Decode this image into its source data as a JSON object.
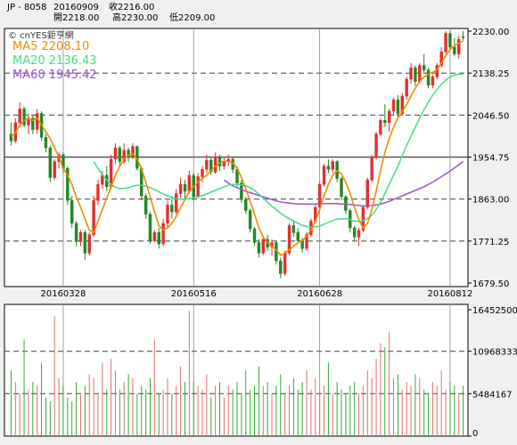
{
  "header": {
    "symbol": "JP - 8058",
    "date": "20160909",
    "close_label": "收2216.00",
    "open_label": "開2218.00",
    "high_label": "高2230.00",
    "low_label": "低2209.00"
  },
  "legend": {
    "source": "© cnYES鉅亨網",
    "ma5": "MA5 2208.10",
    "ma20": "MA20 2136.43",
    "ma60": "MA60 1945.42"
  },
  "colors": {
    "up": "#e03030",
    "down": "#228822",
    "ma5": "#f08c00",
    "ma20": "#44dd88",
    "ma60": "#9955cc",
    "source": "#333333"
  },
  "chart_data": [
    {
      "type": "candlestick",
      "y_ticks": [
        2230.0,
        2138.25,
        2046.5,
        1954.75,
        1863.0,
        1771.25,
        1679.5
      ],
      "y_tick_labels": [
        "2230.00",
        "2138.25",
        "2046.50",
        "1954.75",
        "1863.00",
        "1771.25",
        "1679.50"
      ],
      "ylim": [
        1679.5,
        2230.0
      ],
      "x_tick_labels": [
        "20160328",
        "20160516",
        "20160628",
        "20160812"
      ],
      "x_tick_index": [
        12,
        42,
        71,
        101
      ],
      "reference_line": 1954.75,
      "ohlc": [
        [
          2005,
          2030,
          1980,
          1990
        ],
        [
          1990,
          2040,
          1985,
          2030
        ],
        [
          2030,
          2075,
          2020,
          2060
        ],
        [
          2060,
          2065,
          2020,
          2025
        ],
        [
          2025,
          2050,
          2005,
          2040
        ],
        [
          2040,
          2045,
          2005,
          2015
        ],
        [
          2015,
          2060,
          2005,
          2050
        ],
        [
          2050,
          2055,
          1990,
          1998
        ],
        [
          1998,
          2005,
          1965,
          1975
        ],
        [
          1975,
          1980,
          1900,
          1910
        ],
        [
          1910,
          1950,
          1905,
          1945
        ],
        [
          1945,
          1965,
          1930,
          1960
        ],
        [
          1960,
          1965,
          1920,
          1930
        ],
        [
          1930,
          1935,
          1850,
          1860
        ],
        [
          1860,
          1870,
          1800,
          1810
        ],
        [
          1810,
          1815,
          1760,
          1770
        ],
        [
          1770,
          1795,
          1760,
          1790
        ],
        [
          1790,
          1795,
          1730,
          1745
        ],
        [
          1745,
          1790,
          1740,
          1785
        ],
        [
          1785,
          1870,
          1780,
          1860
        ],
        [
          1860,
          1905,
          1850,
          1895
        ],
        [
          1895,
          1925,
          1885,
          1915
        ],
        [
          1915,
          1935,
          1880,
          1890
        ],
        [
          1890,
          1960,
          1885,
          1950
        ],
        [
          1950,
          1985,
          1940,
          1975
        ],
        [
          1975,
          1980,
          1935,
          1945
        ],
        [
          1945,
          1985,
          1940,
          1970
        ],
        [
          1970,
          1975,
          1945,
          1955
        ],
        [
          1955,
          1985,
          1950,
          1978
        ],
        [
          1978,
          1980,
          1925,
          1930
        ],
        [
          1930,
          1935,
          1860,
          1870
        ],
        [
          1870,
          1875,
          1820,
          1830
        ],
        [
          1830,
          1835,
          1765,
          1772
        ],
        [
          1772,
          1795,
          1768,
          1790
        ],
        [
          1790,
          1800,
          1755,
          1765
        ],
        [
          1765,
          1820,
          1760,
          1810
        ],
        [
          1810,
          1860,
          1800,
          1850
        ],
        [
          1850,
          1870,
          1820,
          1835
        ],
        [
          1835,
          1885,
          1830,
          1875
        ],
        [
          1875,
          1910,
          1865,
          1895
        ],
        [
          1895,
          1905,
          1865,
          1880
        ],
        [
          1880,
          1925,
          1875,
          1915
        ],
        [
          1915,
          1920,
          1860,
          1868
        ],
        [
          1868,
          1920,
          1865,
          1912
        ],
        [
          1912,
          1935,
          1900,
          1928
        ],
        [
          1928,
          1960,
          1920,
          1948
        ],
        [
          1948,
          1955,
          1915,
          1922
        ],
        [
          1922,
          1965,
          1918,
          1955
        ],
        [
          1955,
          1960,
          1925,
          1935
        ],
        [
          1935,
          1955,
          1928,
          1945
        ],
        [
          1945,
          1960,
          1935,
          1950
        ],
        [
          1950,
          1955,
          1920,
          1928
        ],
        [
          1928,
          1935,
          1890,
          1898
        ],
        [
          1898,
          1905,
          1855,
          1862
        ],
        [
          1862,
          1868,
          1830,
          1838
        ],
        [
          1838,
          1842,
          1790,
          1798
        ],
        [
          1798,
          1802,
          1760,
          1768
        ],
        [
          1768,
          1775,
          1735,
          1745
        ],
        [
          1745,
          1780,
          1740,
          1775
        ],
        [
          1775,
          1785,
          1750,
          1758
        ],
        [
          1758,
          1775,
          1740,
          1768
        ],
        [
          1768,
          1770,
          1720,
          1728
        ],
        [
          1728,
          1735,
          1690,
          1700
        ],
        [
          1700,
          1750,
          1695,
          1745
        ],
        [
          1745,
          1810,
          1740,
          1805
        ],
        [
          1805,
          1815,
          1780,
          1790
        ],
        [
          1790,
          1800,
          1765,
          1772
        ],
        [
          1772,
          1778,
          1745,
          1755
        ],
        [
          1755,
          1790,
          1750,
          1785
        ],
        [
          1785,
          1820,
          1780,
          1815
        ],
        [
          1815,
          1850,
          1810,
          1845
        ],
        [
          1845,
          1900,
          1840,
          1895
        ],
        [
          1895,
          1940,
          1890,
          1935
        ],
        [
          1935,
          1950,
          1920,
          1928
        ],
        [
          1928,
          1950,
          1920,
          1945
        ],
        [
          1945,
          1948,
          1900,
          1908
        ],
        [
          1908,
          1912,
          1860,
          1868
        ],
        [
          1868,
          1872,
          1830,
          1838
        ],
        [
          1838,
          1842,
          1790,
          1800
        ],
        [
          1800,
          1805,
          1770,
          1780
        ],
        [
          1780,
          1800,
          1760,
          1795
        ],
        [
          1795,
          1850,
          1790,
          1845
        ],
        [
          1845,
          1910,
          1840,
          1905
        ],
        [
          1905,
          1960,
          1900,
          1955
        ],
        [
          1955,
          2010,
          1950,
          2005
        ],
        [
          2005,
          2040,
          2000,
          2035
        ],
        [
          2035,
          2070,
          2020,
          2030
        ],
        [
          2030,
          2060,
          2010,
          2055
        ],
        [
          2055,
          2085,
          2045,
          2080
        ],
        [
          2080,
          2090,
          2040,
          2050
        ],
        [
          2050,
          2095,
          2045,
          2088
        ],
        [
          2088,
          2130,
          2080,
          2125
        ],
        [
          2125,
          2160,
          2115,
          2150
        ],
        [
          2150,
          2155,
          2110,
          2120
        ],
        [
          2120,
          2160,
          2115,
          2155
        ],
        [
          2155,
          2180,
          2140,
          2145
        ],
        [
          2145,
          2150,
          2105,
          2112
        ],
        [
          2112,
          2135,
          2105,
          2130
        ],
        [
          2130,
          2160,
          2125,
          2155
        ],
        [
          2155,
          2195,
          2150,
          2185
        ],
        [
          2185,
          2230,
          2180,
          2225
        ],
        [
          2225,
          2230,
          2190,
          2195
        ],
        [
          2195,
          2215,
          2175,
          2180
        ],
        [
          2180,
          2220,
          2170,
          2212
        ],
        [
          2218,
          2230,
          2209,
          2216
        ]
      ],
      "ma5": [
        2000,
        2008,
        2025,
        2035,
        2038,
        2035,
        2040,
        2025,
        2010,
        1995,
        1975,
        1955,
        1930,
        1915,
        1895,
        1868,
        1845,
        1820,
        1795,
        1790,
        1815,
        1840,
        1865,
        1890,
        1915,
        1935,
        1950,
        1960,
        1962,
        1950,
        1930,
        1900,
        1868,
        1835,
        1805,
        1795,
        1800,
        1810,
        1825,
        1845,
        1862,
        1880,
        1890,
        1900,
        1908,
        1915,
        1925,
        1935,
        1942,
        1946,
        1945,
        1942,
        1930,
        1910,
        1885,
        1858,
        1830,
        1800,
        1780,
        1768,
        1760,
        1752,
        1740,
        1745,
        1752,
        1760,
        1768,
        1772,
        1782,
        1795,
        1815,
        1840,
        1870,
        1895,
        1915,
        1925,
        1918,
        1900,
        1875,
        1845,
        1818,
        1800,
        1810,
        1840,
        1880,
        1925,
        1965,
        1995,
        2020,
        2040,
        2055,
        2070,
        2088,
        2105,
        2120,
        2130,
        2136,
        2140,
        2146,
        2160,
        2176,
        2190,
        2198,
        2204,
        2208
      ],
      "ma20": [
        null,
        null,
        null,
        null,
        null,
        null,
        null,
        null,
        null,
        null,
        null,
        null,
        null,
        null,
        null,
        null,
        null,
        null,
        null,
        1945,
        1930,
        1916,
        1904,
        1895,
        1889,
        1886,
        1886,
        1888,
        1891,
        1893,
        1893,
        1891,
        1888,
        1884,
        1879,
        1874,
        1870,
        1866,
        1864,
        1863,
        1863,
        1864,
        1866,
        1868,
        1871,
        1874,
        1878,
        1882,
        1886,
        1890,
        1893,
        1895,
        1895,
        1894,
        1892,
        1888,
        1882,
        1874,
        1865,
        1856,
        1848,
        1840,
        1832,
        1826,
        1820,
        1815,
        1810,
        1806,
        1803,
        1802,
        1802,
        1804,
        1808,
        1812,
        1816,
        1819,
        1820,
        1820,
        1818,
        1815,
        1814,
        1815,
        1820,
        1828,
        1840,
        1856,
        1875,
        1895,
        1915,
        1935,
        1958,
        1980,
        2000,
        2020,
        2040,
        2058,
        2075,
        2090,
        2103,
        2114,
        2123,
        2130,
        2134,
        2136,
        2136
      ],
      "ma60": [
        null,
        null,
        null,
        null,
        null,
        null,
        null,
        null,
        null,
        null,
        null,
        null,
        null,
        null,
        null,
        null,
        null,
        null,
        null,
        null,
        null,
        null,
        null,
        null,
        null,
        null,
        null,
        null,
        null,
        null,
        null,
        null,
        null,
        null,
        null,
        null,
        null,
        null,
        null,
        null,
        null,
        null,
        null,
        null,
        null,
        null,
        null,
        null,
        null,
        1905,
        1898,
        1892,
        1888,
        1884,
        1880,
        1877,
        1874,
        1871,
        1868,
        1865,
        1862,
        1859,
        1857,
        1855,
        1854,
        1853,
        1852,
        1852,
        1852,
        1852,
        1852,
        1852,
        1853,
        1853,
        1853,
        1853,
        1852,
        1852,
        1851,
        1850,
        1849,
        1848,
        1848,
        1849,
        1850,
        1852,
        1855,
        1858,
        1862,
        1866,
        1870,
        1874,
        1878,
        1882,
        1886,
        1890,
        1895,
        1900,
        1906,
        1912,
        1918,
        1924,
        1931,
        1938,
        1945
      ]
    },
    {
      "type": "bar",
      "y_ticks": [
        16452500,
        10968333,
        5484167,
        0
      ],
      "y_tick_labels": [
        "16452500",
        "10968333",
        "5484167",
        "0"
      ],
      "ylim": [
        0,
        16452500
      ],
      "volume": [
        8.5,
        7.0,
        5.5,
        12.5,
        6.0,
        7.0,
        6.5,
        9.5,
        5.0,
        4.5,
        15.5,
        7.5,
        6.5,
        5.0,
        4.5,
        7.0,
        5.5,
        6.5,
        8.0,
        7.5,
        5.5,
        9.5,
        6.0,
        10.0,
        8.5,
        6.0,
        7.0,
        8.0,
        7.5,
        5.5,
        6.5,
        6.0,
        7.5,
        12.5,
        5.5,
        6.0,
        7.5,
        5.5,
        6.5,
        9.0,
        7.0,
        16.2,
        7.0,
        6.5,
        6.0,
        8.0,
        5.0,
        6.5,
        7.0,
        5.0,
        6.5,
        6.0,
        7.0,
        5.5,
        8.5,
        6.0,
        6.5,
        9.0,
        6.5,
        7.0,
        5.5,
        6.5,
        8.0,
        5.5,
        6.5,
        7.5,
        6.0,
        7.0,
        8.5,
        6.0,
        7.5,
        6.0,
        6.5,
        9.5,
        5.5,
        7.0,
        6.0,
        5.5,
        6.5,
        7.0,
        5.5,
        6.5,
        8.5,
        7.5,
        10.0,
        12.0,
        11.5,
        13.5,
        7.5,
        8.0,
        6.0,
        7.0,
        6.5,
        8.0,
        7.5,
        6.0,
        5.5,
        7.0,
        6.5,
        8.5,
        6.0,
        7.0,
        6.5,
        5.5,
        6.5
      ],
      "volume_unit_millions": true
    }
  ]
}
